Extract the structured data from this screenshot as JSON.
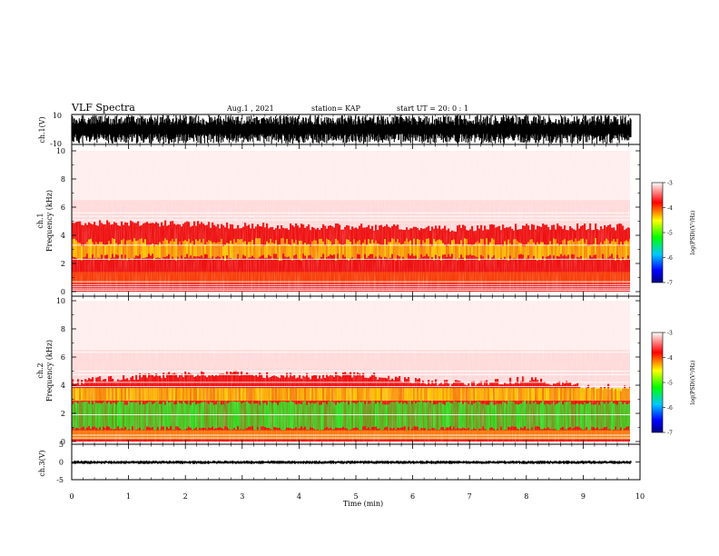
{
  "header": {
    "title": "VLF Spectra",
    "date": "Aug.1 , 2021",
    "station": "station= KAP",
    "start": "start UT = 20: 0 : 1"
  },
  "chart_data": [
    {
      "type": "line",
      "panel": "ch1-waveform",
      "ylabel": "ch.1(V)",
      "ylim": [
        -10,
        10
      ],
      "y_ticks": [
        "10",
        "-10"
      ],
      "xlim": [
        0,
        10
      ],
      "data_end_x": 9.85,
      "x": [
        0,
        1,
        2,
        3,
        4,
        5,
        6,
        7,
        8,
        9,
        9.85
      ],
      "y_envelope_upper": [
        9.5,
        9.5,
        9.5,
        9.5,
        9.5,
        9.5,
        9.5,
        9.5,
        9.5,
        9.5,
        9.5
      ],
      "y_envelope_lower": [
        -9.5,
        -9.5,
        -9.5,
        -9.5,
        -9.5,
        -9.5,
        -9.5,
        -9.5,
        -9.5,
        -9.5,
        -9.5
      ]
    },
    {
      "type": "heatmap",
      "panel": "ch1-spectrogram",
      "ylabel_line1": "ch.1",
      "ylabel_line2": "Frequency (kHz)",
      "ylim": [
        0,
        10
      ],
      "y_ticks": [
        "0",
        "2",
        "4",
        "6",
        "8",
        "10"
      ],
      "xlim": [
        0,
        10
      ],
      "data_end_x": 9.85,
      "band_top_khz": [
        4.9,
        4.9,
        4.8,
        4.7,
        4.6,
        4.6,
        4.5,
        4.5,
        4.6,
        4.6,
        4.6
      ],
      "yellow_band_khz": [
        [
          2.2,
          3.8
        ]
      ],
      "white_lines_khz": [
        0.1,
        0.2,
        0.35,
        0.5,
        0.7,
        2.3,
        3.3,
        5.1,
        5.35,
        5.6
      ],
      "colorbar": {
        "ticks": [
          "-3",
          "-4",
          "-5",
          "-6",
          "-7"
        ],
        "label": "log(PSD)(V²/Hz)",
        "range": [
          -7,
          -3
        ]
      }
    },
    {
      "type": "heatmap",
      "panel": "ch2-spectrogram",
      "ylabel_line1": "ch.2",
      "ylabel_line2": "Frequency (kHz)",
      "ylim": [
        0,
        10
      ],
      "y_ticks": [
        "0",
        "2",
        "4",
        "6",
        "8",
        "10"
      ],
      "xlim": [
        0,
        10
      ],
      "data_end_x": 9.85,
      "band_top_khz": [
        4.2,
        4.6,
        4.8,
        4.8,
        4.6,
        4.8,
        4.3,
        4.1,
        4.4,
        3.9,
        3.8
      ],
      "green_band_khz": [
        [
          0.8,
          2.9
        ]
      ],
      "white_lines_khz": [
        0.25,
        0.45,
        1.9,
        3.9,
        4.2,
        4.75,
        5.0,
        6.35
      ],
      "colorbar": {
        "ticks": [
          "-3",
          "-4",
          "-5",
          "-6",
          "-7"
        ],
        "label": "log(PSD)(V²/Hz)",
        "range": [
          -7,
          -3
        ]
      }
    },
    {
      "type": "line",
      "panel": "ch3-waveform",
      "ylabel": "ch.3(V)",
      "ylim": [
        -5,
        5
      ],
      "y_ticks": [
        "5",
        "0",
        "-5"
      ],
      "xlim": [
        0,
        10
      ],
      "data_end_x": 9.85,
      "x": [
        0,
        1,
        2,
        3,
        4,
        5,
        6,
        7,
        8,
        9,
        9.85
      ],
      "y_envelope_upper": [
        0.4,
        0.4,
        0.4,
        0.4,
        0.4,
        0.4,
        0.4,
        0.4,
        0.4,
        0.4,
        0.4
      ],
      "y_envelope_lower": [
        -0.6,
        -0.6,
        -0.6,
        -0.6,
        -0.6,
        -0.6,
        -0.6,
        -0.6,
        -0.6,
        -0.6,
        -0.6
      ],
      "xlabel": "Time (min)",
      "x_ticks": [
        "0",
        "1",
        "2",
        "3",
        "4",
        "5",
        "6",
        "7",
        "8",
        "9",
        "10"
      ]
    }
  ],
  "colors": {
    "spectral": [
      "#000080",
      "#0000ff",
      "#00c8ff",
      "#00ff00",
      "#ffff00",
      "#ff0000",
      "#ffffff"
    ]
  }
}
